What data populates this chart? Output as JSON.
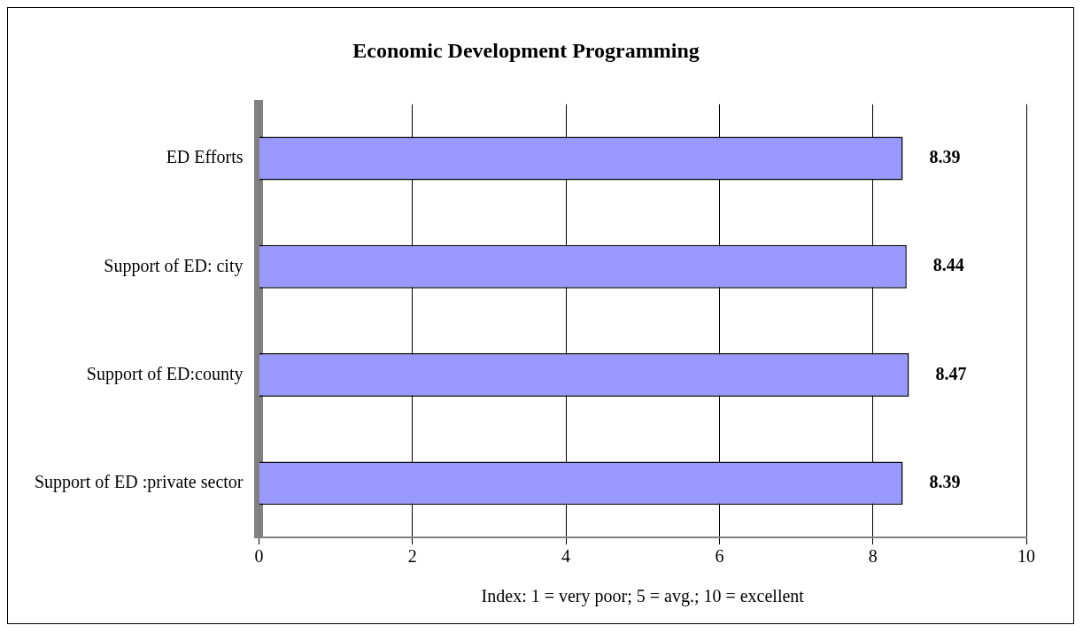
{
  "chart_data": {
    "type": "bar",
    "orientation": "horizontal",
    "title": "Economic Development Programming",
    "xlabel": "Index: 1 = very poor; 5 = avg.; 10 = excellent",
    "categories": [
      "ED Efforts",
      "Support of ED: city",
      "Support of ED:county",
      "Support of ED :private sector"
    ],
    "values": [
      8.39,
      8.44,
      8.47,
      8.39
    ],
    "color": "#9999ff",
    "xlim": [
      0,
      10
    ],
    "xticks": [
      0,
      2,
      4,
      6,
      8,
      10
    ],
    "grid": "x",
    "data_labels": true,
    "legend": false
  }
}
